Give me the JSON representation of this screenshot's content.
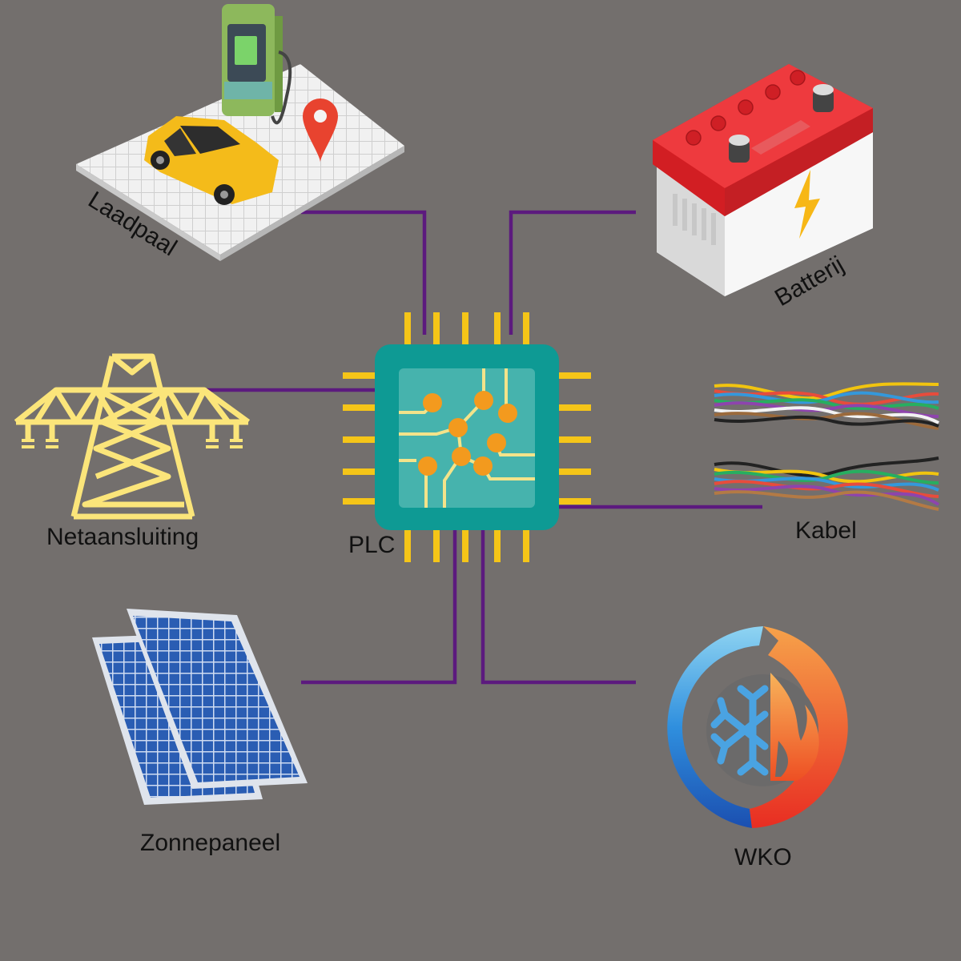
{
  "diagram": {
    "center": {
      "label": "PLC",
      "icon": "microchip-icon"
    },
    "nodes": [
      {
        "id": "laadpaal",
        "label": "Laadpaal",
        "icon": "ev-charging-station-icon"
      },
      {
        "id": "batterij",
        "label": "Batterij",
        "icon": "car-battery-icon"
      },
      {
        "id": "netaansluiting",
        "label": "Netaansluiting",
        "icon": "power-pylon-icon"
      },
      {
        "id": "kabel",
        "label": "Kabel",
        "icon": "colored-wires-icon"
      },
      {
        "id": "zonnepaneel",
        "label": "Zonnepaneel",
        "icon": "solar-panel-icon"
      },
      {
        "id": "wko",
        "label": "WKO",
        "icon": "heat-cold-storage-icon"
      }
    ],
    "edges": [
      {
        "from": "plc",
        "to": "laadpaal"
      },
      {
        "from": "plc",
        "to": "batterij"
      },
      {
        "from": "plc",
        "to": "netaansluiting"
      },
      {
        "from": "plc",
        "to": "kabel"
      },
      {
        "from": "plc",
        "to": "zonnepaneel"
      },
      {
        "from": "plc",
        "to": "wko"
      }
    ],
    "colors": {
      "background": "#736f6d",
      "connector": "#5c1a7e",
      "chip_body": "#0e9a94",
      "chip_inner": "#46b3ad",
      "chip_pins": "#f5c518",
      "chip_nodes": "#f39a1e",
      "chip_traces": "#f3e38a",
      "pylon": "#fbe57a",
      "battery_top": "#e5282d",
      "battery_body": "#ececec",
      "bolt": "#f7b716",
      "car": "#f4bb1a",
      "charger": "#8db85c",
      "pin": "#e8432f",
      "solar_cell": "#2a5db3",
      "wko_cold": "#2f8fde",
      "wko_hot": "#ee4425"
    }
  }
}
